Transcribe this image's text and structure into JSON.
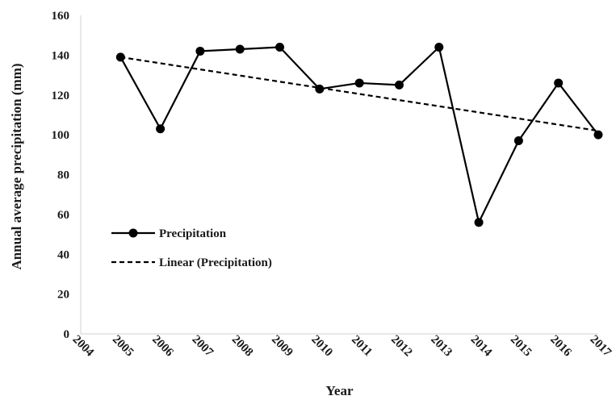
{
  "chart_data": {
    "type": "line",
    "xlabel": "Year",
    "ylabel": "Annual average precipitation  (mm)",
    "x_categories": [
      "2004",
      "2005",
      "2006",
      "2007",
      "2008",
      "2009",
      "2010",
      "2011",
      "2012",
      "2013",
      "2014",
      "2015",
      "2016",
      "2017"
    ],
    "ylim": [
      0,
      160
    ],
    "yticks": [
      "0",
      "20",
      "40",
      "60",
      "80",
      "100",
      "120",
      "140",
      "160"
    ],
    "grid": false,
    "legend_position": "middle-left",
    "series": [
      {
        "name": "Precipitation",
        "style": "solid-with-markers",
        "color": "#000000",
        "x": [
          "2005",
          "2006",
          "2007",
          "2008",
          "2009",
          "2010",
          "2011",
          "2012",
          "2013",
          "2014",
          "2015",
          "2016",
          "2017"
        ],
        "y": [
          139,
          103,
          142,
          143,
          144,
          123,
          126,
          125,
          144,
          56,
          97,
          126,
          100
        ]
      },
      {
        "name": "Linear (Precipitation)",
        "style": "dashed",
        "color": "#000000",
        "x": [
          "2005",
          "2017"
        ],
        "y": [
          139,
          102
        ]
      }
    ]
  }
}
